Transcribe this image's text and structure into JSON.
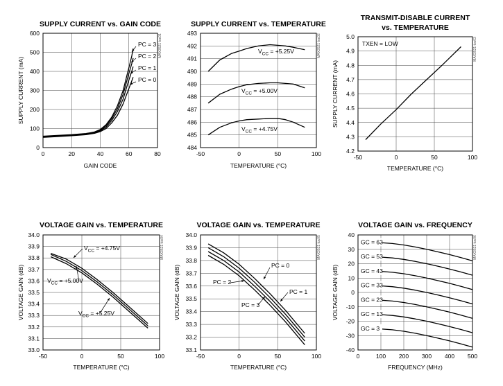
{
  "chart_data": [
    {
      "type": "line",
      "title": "SUPPLY CURRENT vs. GAIN CODE",
      "code": "MAX3521 toc01",
      "xlabel": "GAIN CODE",
      "ylabel": "SUPPLY CURRENT (mA)",
      "xlim": [
        0,
        80
      ],
      "ylim": [
        0,
        600
      ],
      "xticks": [
        "0",
        "20",
        "40",
        "60",
        "80"
      ],
      "yticks": [
        "0",
        "100",
        "200",
        "300",
        "400",
        "500",
        "600"
      ],
      "series": [
        {
          "name": "PC = 3",
          "x": [
            0,
            10,
            20,
            30,
            36,
            40,
            44,
            48,
            52,
            56,
            58,
            60,
            62,
            63
          ],
          "y": [
            60,
            64,
            68,
            74,
            82,
            95,
            120,
            160,
            220,
            300,
            360,
            420,
            480,
            520
          ]
        },
        {
          "name": "PC = 2",
          "x": [
            0,
            10,
            20,
            30,
            36,
            40,
            44,
            48,
            52,
            56,
            58,
            60,
            62,
            63
          ],
          "y": [
            58,
            62,
            66,
            72,
            80,
            92,
            115,
            152,
            205,
            280,
            335,
            390,
            440,
            470
          ]
        },
        {
          "name": "PC = 1",
          "x": [
            0,
            10,
            20,
            30,
            36,
            40,
            44,
            48,
            52,
            56,
            58,
            60,
            62,
            63
          ],
          "y": [
            56,
            60,
            64,
            70,
            78,
            88,
            108,
            142,
            190,
            255,
            305,
            355,
            400,
            425
          ]
        },
        {
          "name": "PC = 0",
          "x": [
            0,
            10,
            20,
            30,
            36,
            40,
            44,
            48,
            52,
            56,
            58,
            60,
            62,
            63
          ],
          "y": [
            54,
            58,
            62,
            68,
            75,
            84,
            100,
            130,
            170,
            230,
            270,
            310,
            350,
            370
          ]
        }
      ]
    },
    {
      "type": "line",
      "title": "SUPPLY CURRENT vs. TEMPERATURE",
      "code": "MAX3521 toc02",
      "xlabel": "TEMPERATURE (°C)",
      "ylabel": "",
      "xlim": [
        -50,
        100
      ],
      "ylim": [
        484,
        493
      ],
      "xticks": [
        "-50",
        "0",
        "50",
        "100"
      ],
      "yticks": [
        "484",
        "485",
        "486",
        "487",
        "488",
        "489",
        "490",
        "491",
        "492",
        "493"
      ],
      "series": [
        {
          "name": "V_CC = +5.25V",
          "label_main": "V",
          "label_sub": "CC",
          "label_rest": " = +5.25V",
          "x": [
            -40,
            -25,
            -10,
            0,
            10,
            25,
            40,
            50,
            60,
            70,
            85
          ],
          "y": [
            490.0,
            490.9,
            491.4,
            491.6,
            491.8,
            492.0,
            492.1,
            492.05,
            492.0,
            491.9,
            491.7
          ]
        },
        {
          "name": "V_CC = +5.00V",
          "label_main": "V",
          "label_sub": "CC",
          "label_rest": " = +5.00V",
          "x": [
            -40,
            -25,
            -10,
            0,
            10,
            25,
            40,
            50,
            60,
            70,
            85
          ],
          "y": [
            487.5,
            488.2,
            488.6,
            488.8,
            488.95,
            489.05,
            489.1,
            489.1,
            489.05,
            489.0,
            488.7
          ]
        },
        {
          "name": "V_CC = +4.75V",
          "label_main": "V",
          "label_sub": "CC",
          "label_rest": " = +4.75V",
          "x": [
            -40,
            -25,
            -10,
            0,
            10,
            25,
            40,
            50,
            60,
            70,
            85
          ],
          "y": [
            485.0,
            485.6,
            485.95,
            486.1,
            486.2,
            486.25,
            486.3,
            486.3,
            486.2,
            486.0,
            485.6
          ]
        }
      ]
    },
    {
      "type": "line",
      "title": "TRANSMIT-DISABLE CURRENT",
      "title2": "vs. TEMPERATURE",
      "code": "MAX3521 toc03",
      "xlabel": "TEMPERATURE (°C)",
      "ylabel": "SUPPLY CURRENT (mA)",
      "xlim": [
        -50,
        100
      ],
      "ylim": [
        4.2,
        5.0
      ],
      "xticks": [
        "-50",
        "0",
        "50",
        "100"
      ],
      "yticks": [
        "4.2",
        "4.3",
        "4.4",
        "4.5",
        "4.6",
        "4.7",
        "4.8",
        "4.9",
        "5.0"
      ],
      "annotation": "TXEN = LOW",
      "series": [
        {
          "name": "",
          "x": [
            -40,
            -20,
            0,
            20,
            40,
            60,
            85
          ],
          "y": [
            4.28,
            4.39,
            4.49,
            4.6,
            4.7,
            4.8,
            4.93
          ]
        }
      ]
    },
    {
      "type": "line",
      "title": "VOLTAGE GAIN vs. TEMPERATURE",
      "code": "MAX3521 toc04",
      "xlabel": "TEMPERATURE (°C)",
      "ylabel": "VOLTAGE GAIN (dB)",
      "xlim": [
        -50,
        100
      ],
      "ylim": [
        33.0,
        34.0
      ],
      "xticks": [
        "-50",
        "0",
        "50",
        "100"
      ],
      "yticks": [
        "33.0",
        "33.1",
        "33.2",
        "33.3",
        "33.4",
        "33.5",
        "33.6",
        "33.7",
        "33.8",
        "33.9",
        "34.0"
      ],
      "series": [
        {
          "name": "V_CC = +4.75V",
          "label_main": "V",
          "label_sub": "CC",
          "label_rest": " = +4.75V",
          "x": [
            -40,
            -20,
            0,
            20,
            40,
            60,
            85
          ],
          "y": [
            33.84,
            33.79,
            33.71,
            33.61,
            33.5,
            33.38,
            33.23
          ]
        },
        {
          "name": "V_CC = +5.00V",
          "label_main": "V",
          "label_sub": "CC",
          "label_rest": " = +5.00V",
          "x": [
            -40,
            -20,
            0,
            20,
            40,
            60,
            85
          ],
          "y": [
            33.83,
            33.77,
            33.69,
            33.59,
            33.48,
            33.36,
            33.21
          ]
        },
        {
          "name": "V_CC = +5.25V",
          "label_main": "V",
          "label_sub": "CC",
          "label_rest": " = +5.25V",
          "x": [
            -40,
            -20,
            0,
            20,
            40,
            60,
            85
          ],
          "y": [
            33.81,
            33.75,
            33.67,
            33.57,
            33.46,
            33.34,
            33.19
          ]
        }
      ]
    },
    {
      "type": "line",
      "title": "VOLTAGE GAIN vs. TEMPERATURE",
      "code": "MAX3521 toc05",
      "xlabel": "TEMPERATURE (°C)",
      "ylabel": "VOLTAGE GAIN (dB)",
      "xlim": [
        -50,
        100
      ],
      "ylim": [
        33.1,
        34.0
      ],
      "xticks": [
        "-50",
        "0",
        "50",
        "100"
      ],
      "yticks": [
        "33.1",
        "33.2",
        "33.3",
        "33.4",
        "33.5",
        "33.6",
        "33.7",
        "33.8",
        "33.9",
        "34.0"
      ],
      "series": [
        {
          "name": "PC = 0",
          "x": [
            -40,
            -20,
            0,
            20,
            40,
            60,
            85
          ],
          "y": [
            33.93,
            33.86,
            33.77,
            33.66,
            33.54,
            33.41,
            33.23
          ]
        },
        {
          "name": "PC = 1",
          "x": [
            -40,
            -20,
            0,
            20,
            40,
            60,
            85
          ],
          "y": [
            33.9,
            33.83,
            33.74,
            33.63,
            33.51,
            33.38,
            33.2
          ]
        },
        {
          "name": "PC = 2",
          "x": [
            -40,
            -20,
            0,
            20,
            40,
            60,
            85
          ],
          "y": [
            33.87,
            33.8,
            33.71,
            33.6,
            33.48,
            33.35,
            33.17
          ]
        },
        {
          "name": "PC = 3",
          "x": [
            -40,
            -20,
            0,
            20,
            40,
            60,
            85
          ],
          "y": [
            33.84,
            33.77,
            33.68,
            33.57,
            33.45,
            33.32,
            33.14
          ]
        }
      ]
    },
    {
      "type": "line",
      "title": "VOLTAGE GAIN vs. FREQUENCY",
      "code": "MAX3521 toc06",
      "xlabel": "FREQUENCY (MHz)",
      "ylabel": "VOLTAGE GAIN (dB)",
      "xlim": [
        0,
        500
      ],
      "ylim": [
        -40,
        40
      ],
      "xticks": [
        "0",
        "100",
        "200",
        "300",
        "400",
        "500"
      ],
      "yticks": [
        "-40",
        "-30",
        "-20",
        "-10",
        "0",
        "10",
        "20",
        "30",
        "40"
      ],
      "series": [
        {
          "name": "GC = 63",
          "x": [
            5,
            50,
            100,
            150,
            200,
            250,
            300,
            350,
            400,
            450,
            500
          ],
          "y": [
            35,
            35,
            34.6,
            34,
            33,
            31.6,
            30,
            28.2,
            26.3,
            24.2,
            22
          ]
        },
        {
          "name": "GC = 53",
          "x": [
            5,
            50,
            100,
            150,
            200,
            250,
            300,
            350,
            400,
            450,
            500
          ],
          "y": [
            25,
            25,
            24.6,
            24,
            23,
            21.6,
            20,
            18.2,
            16.3,
            14.2,
            12
          ]
        },
        {
          "name": "GC = 43",
          "x": [
            5,
            50,
            100,
            150,
            200,
            250,
            300,
            350,
            400,
            450,
            500
          ],
          "y": [
            15,
            15,
            14.6,
            14,
            13,
            11.6,
            10,
            8.2,
            6.3,
            4.2,
            2
          ]
        },
        {
          "name": "GC = 33",
          "x": [
            5,
            50,
            100,
            150,
            200,
            250,
            300,
            350,
            400,
            450,
            500
          ],
          "y": [
            5,
            5,
            4.6,
            4,
            3,
            1.6,
            0,
            -1.8,
            -3.7,
            -5.8,
            -8
          ]
        },
        {
          "name": "GC = 23",
          "x": [
            5,
            50,
            100,
            150,
            200,
            250,
            300,
            350,
            400,
            450,
            500
          ],
          "y": [
            -5,
            -5,
            -5.4,
            -6,
            -7,
            -8.4,
            -10,
            -11.8,
            -13.7,
            -15.8,
            -18
          ]
        },
        {
          "name": "GC = 13",
          "x": [
            5,
            50,
            100,
            150,
            200,
            250,
            300,
            350,
            400,
            450,
            500
          ],
          "y": [
            -15,
            -15,
            -15.4,
            -16,
            -17,
            -18.4,
            -20,
            -21.8,
            -23.7,
            -25.8,
            -28
          ]
        },
        {
          "name": "GC = 3",
          "x": [
            5,
            50,
            100,
            150,
            200,
            250,
            300,
            350,
            400,
            450,
            500
          ],
          "y": [
            -25,
            -25,
            -25.4,
            -26,
            -27,
            -28.4,
            -30,
            -31.8,
            -33.7,
            -35.8,
            -38
          ]
        }
      ]
    }
  ]
}
